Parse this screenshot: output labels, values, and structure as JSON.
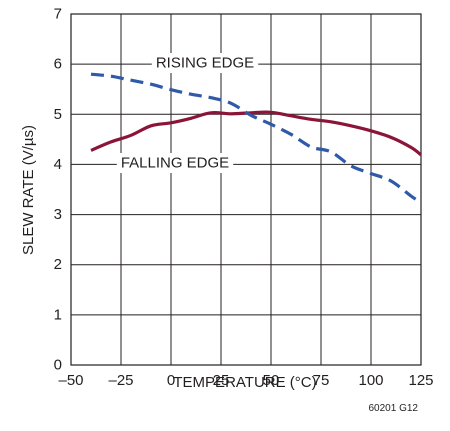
{
  "chart_data": {
    "type": "line",
    "xlabel": "TEMPERATURE (°C)",
    "ylabel": "SLEW RATE (V/µs)",
    "xlim": [
      -50,
      125
    ],
    "ylim": [
      0,
      7
    ],
    "x_ticks": [
      -50,
      -25,
      0,
      25,
      50,
      75,
      100,
      125
    ],
    "x_tick_labels": [
      "–50",
      "–25",
      "0",
      "25",
      "50",
      "75",
      "100",
      "125"
    ],
    "y_ticks": [
      0,
      1,
      2,
      3,
      4,
      5,
      6,
      7
    ],
    "y_tick_labels": [
      "0",
      "1",
      "2",
      "3",
      "4",
      "5",
      "6",
      "7"
    ],
    "grid": true,
    "series": [
      {
        "name": "RISING EDGE",
        "style": "solid",
        "color": "#8b1538",
        "x": [
          -40,
          -30,
          -20,
          -10,
          0,
          10,
          20,
          30,
          40,
          50,
          60,
          70,
          80,
          90,
          100,
          110,
          120,
          125
        ],
        "y": [
          4.28,
          4.45,
          4.58,
          4.77,
          4.83,
          4.92,
          5.03,
          5.01,
          5.03,
          5.04,
          4.97,
          4.9,
          4.85,
          4.77,
          4.67,
          4.54,
          4.34,
          4.19
        ]
      },
      {
        "name": "FALLING EDGE",
        "style": "dashed",
        "color": "#2e5aa8",
        "x": [
          -40,
          -30,
          -20,
          -10,
          0,
          10,
          20,
          30,
          40,
          50,
          60,
          70,
          80,
          90,
          100,
          110,
          120,
          125
        ],
        "y": [
          5.8,
          5.76,
          5.68,
          5.6,
          5.49,
          5.4,
          5.33,
          5.22,
          4.98,
          4.8,
          4.6,
          4.35,
          4.25,
          3.97,
          3.82,
          3.67,
          3.37,
          3.24
        ]
      }
    ],
    "annotations": [
      "RISING EDGE",
      "FALLING EDGE"
    ],
    "figure_id": "60201 G12"
  }
}
